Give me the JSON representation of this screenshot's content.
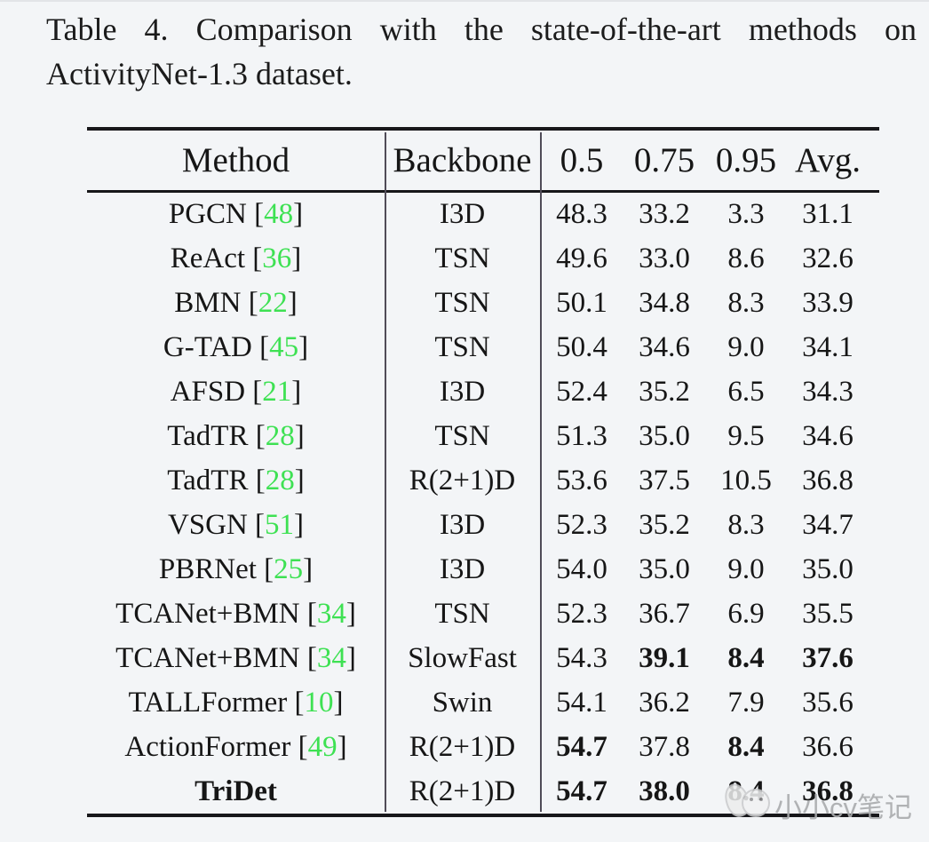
{
  "caption": {
    "line1": "Table 4. Comparison with the state-of-the-art methods on",
    "line2": "ActivityNet-1.3 dataset."
  },
  "table": {
    "headers": {
      "method": "Method",
      "backbone": "Backbone",
      "tiou_05": "0.5",
      "tiou_075": "0.75",
      "tiou_095": "0.95",
      "avg": "Avg."
    },
    "rows": [
      {
        "method": "PGCN",
        "cite": "48",
        "method_bold": false,
        "backbone": "I3D",
        "values": [
          "48.3",
          "33.2",
          "3.3",
          "31.1"
        ],
        "bold": [
          false,
          false,
          false,
          false
        ]
      },
      {
        "method": "ReAct",
        "cite": "36",
        "method_bold": false,
        "backbone": "TSN",
        "values": [
          "49.6",
          "33.0",
          "8.6",
          "32.6"
        ],
        "bold": [
          false,
          false,
          false,
          false
        ]
      },
      {
        "method": "BMN",
        "cite": "22",
        "method_bold": false,
        "backbone": "TSN",
        "values": [
          "50.1",
          "34.8",
          "8.3",
          "33.9"
        ],
        "bold": [
          false,
          false,
          false,
          false
        ]
      },
      {
        "method": "G-TAD",
        "cite": "45",
        "method_bold": false,
        "backbone": "TSN",
        "values": [
          "50.4",
          "34.6",
          "9.0",
          "34.1"
        ],
        "bold": [
          false,
          false,
          false,
          false
        ]
      },
      {
        "method": "AFSD",
        "cite": "21",
        "method_bold": false,
        "backbone": "I3D",
        "values": [
          "52.4",
          "35.2",
          "6.5",
          "34.3"
        ],
        "bold": [
          false,
          false,
          false,
          false
        ]
      },
      {
        "method": "TadTR",
        "cite": "28",
        "method_bold": false,
        "backbone": "TSN",
        "values": [
          "51.3",
          "35.0",
          "9.5",
          "34.6"
        ],
        "bold": [
          false,
          false,
          false,
          false
        ]
      },
      {
        "method": "TadTR",
        "cite": "28",
        "method_bold": false,
        "backbone": "R(2+1)D",
        "values": [
          "53.6",
          "37.5",
          "10.5",
          "36.8"
        ],
        "bold": [
          false,
          false,
          false,
          false
        ]
      },
      {
        "method": "VSGN",
        "cite": "51",
        "method_bold": false,
        "backbone": "I3D",
        "values": [
          "52.3",
          "35.2",
          "8.3",
          "34.7"
        ],
        "bold": [
          false,
          false,
          false,
          false
        ]
      },
      {
        "method": "PBRNet",
        "cite": "25",
        "method_bold": false,
        "backbone": "I3D",
        "values": [
          "54.0",
          "35.0",
          "9.0",
          "35.0"
        ],
        "bold": [
          false,
          false,
          false,
          false
        ]
      },
      {
        "method": "TCANet+BMN",
        "cite": "34",
        "method_bold": false,
        "backbone": "TSN",
        "values": [
          "52.3",
          "36.7",
          "6.9",
          "35.5"
        ],
        "bold": [
          false,
          false,
          false,
          false
        ]
      },
      {
        "method": "TCANet+BMN",
        "cite": "34",
        "method_bold": false,
        "backbone": "SlowFast",
        "values": [
          "54.3",
          "39.1",
          "8.4",
          "37.6"
        ],
        "bold": [
          false,
          true,
          true,
          true
        ]
      },
      {
        "method": "TALLFormer",
        "cite": "10",
        "method_bold": false,
        "backbone": "Swin",
        "values": [
          "54.1",
          "36.2",
          "7.9",
          "35.6"
        ],
        "bold": [
          false,
          false,
          false,
          false
        ]
      },
      {
        "method": "ActionFormer",
        "cite": "49",
        "method_bold": false,
        "backbone": "R(2+1)D",
        "values": [
          "54.7",
          "37.8",
          "8.4",
          "36.6"
        ],
        "bold": [
          true,
          false,
          true,
          false
        ]
      },
      {
        "method": "TriDet",
        "cite": "",
        "method_bold": true,
        "backbone": "R(2+1)D",
        "values": [
          "54.7",
          "38.0",
          "8.4",
          "36.8"
        ],
        "bold": [
          true,
          true,
          true,
          true
        ]
      }
    ]
  },
  "watermark": {
    "text": "小小cv笔记"
  },
  "colors": {
    "citation_green": "#3ee153",
    "rule_black": "#17171a",
    "vertical_rule": "#504c58",
    "watermark_gray": "#a9abad",
    "background": "#f3f5f7"
  }
}
